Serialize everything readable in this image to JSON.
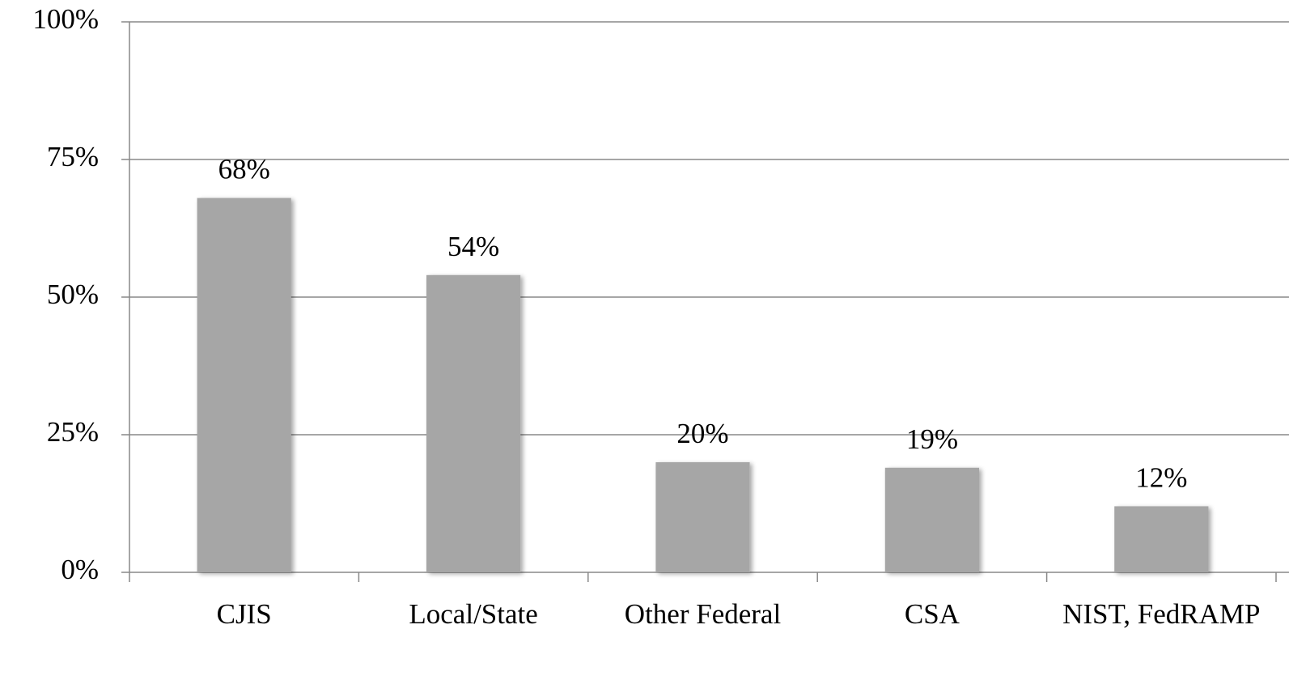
{
  "chart_data": {
    "type": "bar",
    "categories": [
      "CJIS",
      "Local/State",
      "Other Federal",
      "CSA",
      "NIST, FedRAMP"
    ],
    "values": [
      68,
      54,
      20,
      19,
      12
    ],
    "value_labels": [
      "68%",
      "54%",
      "20%",
      "19%",
      "12%"
    ],
    "color": "#a6a6a6",
    "ylim": [
      0,
      100
    ],
    "yticks": [
      {
        "value": 0,
        "label": "0%"
      },
      {
        "value": 25,
        "label": "25%"
      },
      {
        "value": 50,
        "label": "50%"
      },
      {
        "value": 75,
        "label": "75%"
      },
      {
        "value": 100,
        "label": "100%"
      }
    ],
    "grid": true
  }
}
